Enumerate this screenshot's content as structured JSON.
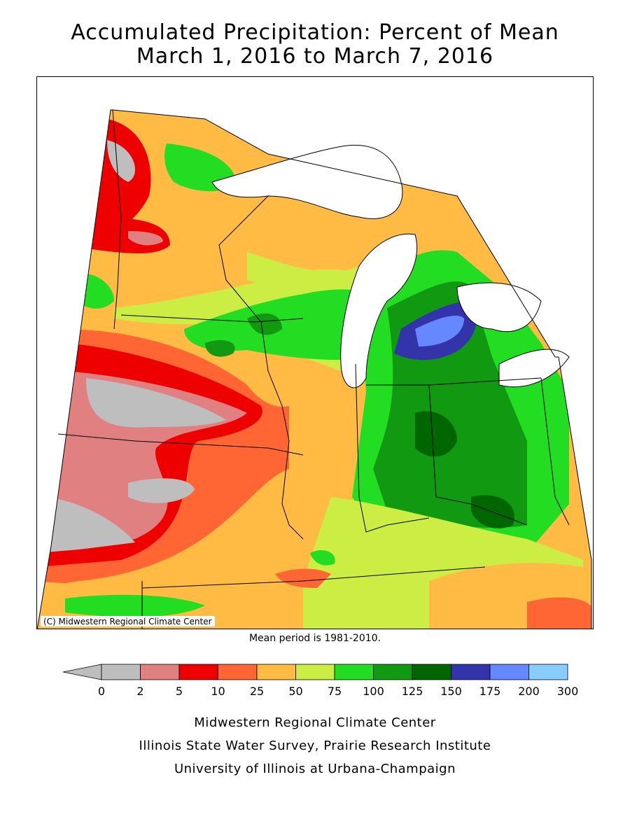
{
  "title": {
    "line1": "Accumulated Precipitation: Percent of Mean",
    "line2": "March 1, 2016 to March 7, 2016"
  },
  "map": {
    "copyright": "(C) Midwestern Regional Climate Center",
    "mean_period": "Mean period is 1981-2010."
  },
  "legend": {
    "labels": [
      "0",
      "2",
      "5",
      "10",
      "25",
      "50",
      "75",
      "100",
      "125",
      "150",
      "175",
      "200",
      "300"
    ],
    "colors": [
      "#bebebe",
      "#e08080",
      "#ee0000",
      "#ff6633",
      "#ffbb44",
      "#ccee44",
      "#22dd22",
      "#119911",
      "#006600",
      "#3333aa",
      "#6688ff",
      "#88ccff"
    ]
  },
  "credits": {
    "line1": "Midwestern Regional Climate Center",
    "line2": "Illinois State Water Survey, Prairie Research Institute",
    "line3": "University of Illinois at Urbana-Champaign"
  }
}
